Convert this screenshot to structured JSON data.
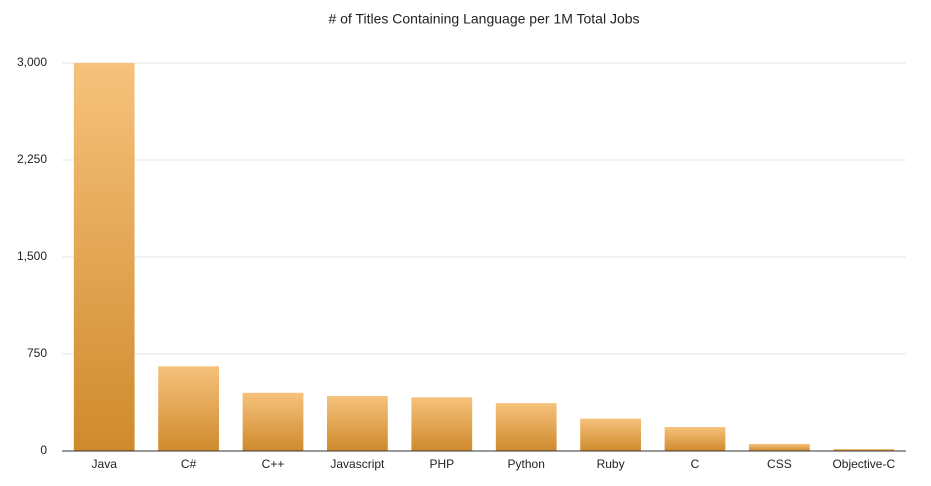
{
  "chart_data": {
    "type": "bar",
    "title": "# of Titles Containing Language per 1M Total Jobs",
    "categories": [
      "Java",
      "C#",
      "C++",
      "Javascript",
      "PHP",
      "Python",
      "Ruby",
      "C",
      "CSS",
      "Objective-C"
    ],
    "values": [
      3000,
      655,
      450,
      425,
      415,
      370,
      250,
      185,
      55,
      15
    ],
    "color": "#e6a655",
    "ylim": [
      0,
      3000
    ],
    "yticks": [
      0,
      750,
      {
        "value": 1500,
        "label": "1,500"
      },
      {
        "value": 2250,
        "label": "2,250"
      },
      {
        "value": 3000,
        "label": "3,000"
      }
    ],
    "grid": true
  }
}
